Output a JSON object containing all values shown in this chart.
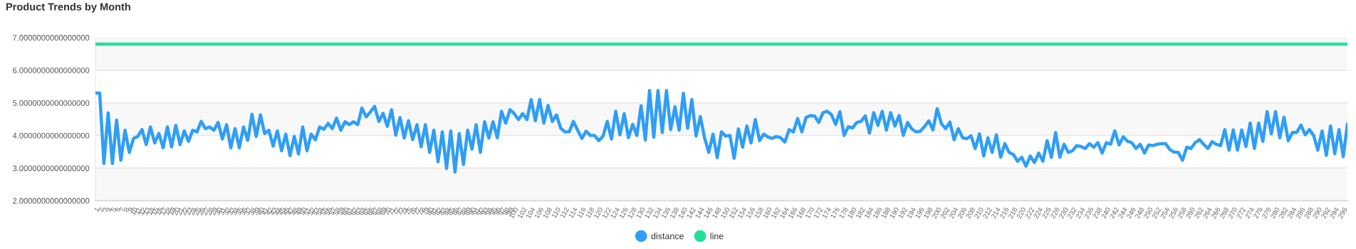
{
  "chart_data": {
    "type": "line",
    "title": "Product Trends by Month",
    "categories": [
      "1",
      "2",
      "3",
      "4",
      "5",
      "6",
      "7",
      "8",
      "9",
      "10",
      "11",
      "12",
      "13",
      "14",
      "15",
      "16",
      "17",
      "18",
      "19",
      "20",
      "21",
      "22",
      "23",
      "24",
      "25",
      "26",
      "27",
      "28",
      "29",
      "30",
      "31",
      "32",
      "33",
      "34",
      "35",
      "36",
      "37",
      "38",
      "39",
      "40",
      "41",
      "42",
      "43",
      "44",
      "45",
      "46",
      "47",
      "48",
      "49",
      "50",
      "51",
      "52",
      "53",
      "54",
      "55",
      "56",
      "57",
      "58",
      "59",
      "60",
      "61",
      "62",
      "63",
      "64",
      "65",
      "66",
      "67",
      "68",
      "69",
      "70",
      "71",
      "72",
      "73",
      "74",
      "75",
      "76",
      "77",
      "78",
      "79",
      "80",
      "81",
      "82",
      "83",
      "84",
      "85",
      "86",
      "87",
      "88",
      "89",
      "90",
      "91",
      "92",
      "93",
      "94",
      "95",
      "96",
      "97",
      "98",
      "99",
      "100",
      null,
      "102",
      null,
      "104",
      null,
      "106",
      null,
      "108",
      null,
      "110",
      null,
      "112",
      null,
      "114",
      null,
      "116",
      null,
      "118",
      null,
      "120",
      null,
      "122",
      null,
      "124",
      null,
      "126",
      null,
      "128",
      null,
      "130",
      null,
      "132",
      null,
      "134",
      null,
      "136",
      null,
      "138",
      null,
      "140",
      null,
      "142",
      null,
      "144",
      null,
      "146",
      null,
      "148",
      null,
      "150",
      null,
      "152",
      null,
      "154",
      null,
      "156",
      null,
      "158",
      null,
      "160",
      null,
      "162",
      null,
      "164",
      null,
      "166",
      null,
      "168",
      null,
      "170",
      null,
      "172",
      null,
      "174",
      null,
      "176",
      null,
      "178",
      null,
      "180",
      null,
      "182",
      null,
      "184",
      null,
      "186",
      null,
      "188",
      null,
      "190",
      null,
      "192",
      null,
      "194",
      null,
      "196",
      null,
      "198",
      null,
      "200",
      null,
      "202",
      null,
      "204",
      null,
      "206",
      null,
      "208",
      null,
      "210",
      null,
      "212",
      null,
      "214",
      null,
      "216",
      null,
      "218",
      null,
      "220",
      null,
      "222",
      null,
      "224",
      null,
      "226",
      null,
      "228",
      null,
      "230",
      null,
      "232",
      null,
      "234",
      null,
      "236",
      null,
      "238",
      null,
      "240",
      null,
      "242",
      null,
      "244",
      null,
      "246",
      null,
      "248",
      null,
      "250",
      null,
      "252",
      null,
      "254",
      null,
      "256",
      null,
      "258",
      null,
      "260",
      null,
      "262",
      null,
      "264",
      null,
      "266",
      null,
      "268",
      null,
      "270",
      null,
      "272",
      null,
      "274",
      null,
      "276",
      null,
      "278",
      null,
      "280",
      null,
      "282",
      null,
      "284",
      null,
      "286",
      null,
      "288",
      null,
      "290",
      null,
      "292",
      null,
      "294",
      null,
      "296",
      null
    ],
    "series": [
      {
        "name": "distance",
        "color": "#2e9ef6",
        "values": [
          5.3,
          5.3,
          3.14,
          4.69,
          3.14,
          4.47,
          3.24,
          4.16,
          3.48,
          3.91,
          3.97,
          4.18,
          3.72,
          4.26,
          3.77,
          4.06,
          3.62,
          4.26,
          3.65,
          4.31,
          3.72,
          4.14,
          3.82,
          4.16,
          4.11,
          4.43,
          4.21,
          4.26,
          4.16,
          4.4,
          3.89,
          4.33,
          3.62,
          4.21,
          3.62,
          4.26,
          3.85,
          4.65,
          3.97,
          4.63,
          4.06,
          4.16,
          3.67,
          4.14,
          3.53,
          4.04,
          3.38,
          3.97,
          3.43,
          4.26,
          3.53,
          4.04,
          3.87,
          4.26,
          4.19,
          4.37,
          4.21,
          4.53,
          4.16,
          4.42,
          4.33,
          4.42,
          4.33,
          4.84,
          4.57,
          4.72,
          4.89,
          4.43,
          4.68,
          4.28,
          4.79,
          4.01,
          4.55,
          3.92,
          4.45,
          3.87,
          4.33,
          3.65,
          4.33,
          3.48,
          4.16,
          3.19,
          4.11,
          2.99,
          4.14,
          2.88,
          4.06,
          3.11,
          4.16,
          3.58,
          4.33,
          3.48,
          4.42,
          3.92,
          4.42,
          3.93,
          4.74,
          4.38,
          4.79,
          4.67,
          4.49,
          4.67,
          4.49,
          5.1,
          4.45,
          5.1,
          4.38,
          4.92,
          4.43,
          4.63,
          4.22,
          4.11,
          4.11,
          4.43,
          4.16,
          3.91,
          4.13,
          4.0,
          4.0,
          3.84,
          3.98,
          4.43,
          3.89,
          4.74,
          4.02,
          4.67,
          3.93,
          4.34,
          4.0,
          4.91,
          3.86,
          5.38,
          3.95,
          5.38,
          4.09,
          5.38,
          4.18,
          4.88,
          4.16,
          5.29,
          4.22,
          5.1,
          3.98,
          4.58,
          3.93,
          3.48,
          4.04,
          3.32,
          4.11,
          3.98,
          4.0,
          3.3,
          4.2,
          3.64,
          4.29,
          3.77,
          4.49,
          3.84,
          4.04,
          3.95,
          3.91,
          3.97,
          3.93,
          3.8,
          4.18,
          4.11,
          4.52,
          4.11,
          4.55,
          4.61,
          4.6,
          4.4,
          4.7,
          4.74,
          4.64,
          4.34,
          4.73,
          4.0,
          4.27,
          4.23,
          4.4,
          4.43,
          4.6,
          4.07,
          4.7,
          4.31,
          4.74,
          4.16,
          4.7,
          4.29,
          4.61,
          4.0,
          4.4,
          4.2,
          4.11,
          4.13,
          4.27,
          4.45,
          4.17,
          4.82,
          4.36,
          4.21,
          4.41,
          3.87,
          4.21,
          3.93,
          3.9,
          3.99,
          3.6,
          4.05,
          3.37,
          3.93,
          3.48,
          4.02,
          3.33,
          3.75,
          3.48,
          3.42,
          3.21,
          3.33,
          3.06,
          3.37,
          3.17,
          3.46,
          3.21,
          3.84,
          3.33,
          4.09,
          3.33,
          3.73,
          3.48,
          3.53,
          3.69,
          3.66,
          3.6,
          3.75,
          3.64,
          3.78,
          3.46,
          3.78,
          3.73,
          4.14,
          3.71,
          3.96,
          3.82,
          3.78,
          3.6,
          3.73,
          3.46,
          3.71,
          3.69,
          3.73,
          3.75,
          3.75,
          3.57,
          3.49,
          3.48,
          3.24,
          3.64,
          3.6,
          3.78,
          3.87,
          3.73,
          3.6,
          3.81,
          3.73,
          3.69,
          4.18,
          3.55,
          4.17,
          3.55,
          4.17,
          3.66,
          4.38,
          3.6,
          4.38,
          3.82,
          4.73,
          4.05,
          4.73,
          3.93,
          4.56,
          3.84,
          4.09,
          4.09,
          4.32,
          4.02,
          4.18,
          4.0,
          3.55,
          4.14,
          3.39,
          4.29,
          3.44,
          4.18,
          3.35,
          4.35
        ]
      },
      {
        "name": "line",
        "color": "#24df9b",
        "values": [
          6.8,
          6.8,
          6.8,
          6.8,
          6.8,
          6.8,
          6.8,
          6.8,
          6.8,
          6.8,
          6.8,
          6.8,
          6.8,
          6.8,
          6.8,
          6.8,
          6.8,
          6.8,
          6.8,
          6.8,
          6.8,
          6.8,
          6.8,
          6.8,
          6.8,
          6.8,
          6.8,
          6.8,
          6.8,
          6.8,
          6.8,
          6.8,
          6.8,
          6.8,
          6.8,
          6.8,
          6.8,
          6.8,
          6.8,
          6.8,
          6.8,
          6.8,
          6.8,
          6.8,
          6.8,
          6.8,
          6.8,
          6.8,
          6.8,
          6.8,
          6.8,
          6.8,
          6.8,
          6.8,
          6.8,
          6.8,
          6.8,
          6.8,
          6.8,
          6.8,
          6.8,
          6.8,
          6.8,
          6.8,
          6.8,
          6.8,
          6.8,
          6.8,
          6.8,
          6.8,
          6.8,
          6.8,
          6.8,
          6.8,
          6.8,
          6.8,
          6.8,
          6.8,
          6.8,
          6.8,
          6.8,
          6.8,
          6.8,
          6.8,
          6.8,
          6.8,
          6.8,
          6.8,
          6.8,
          6.8,
          6.8,
          6.8,
          6.8,
          6.8,
          6.8,
          6.8,
          6.8,
          6.8,
          6.8,
          6.8,
          6.8,
          6.8,
          6.8,
          6.8,
          6.8,
          6.8,
          6.8,
          6.8,
          6.8,
          6.8,
          6.8,
          6.8,
          6.8,
          6.8,
          6.8,
          6.8,
          6.8,
          6.8,
          6.8,
          6.8,
          6.8,
          6.8,
          6.8,
          6.8,
          6.8,
          6.8,
          6.8,
          6.8,
          6.8,
          6.8,
          6.8,
          6.8,
          6.8,
          6.8,
          6.8,
          6.8,
          6.8,
          6.8,
          6.8,
          6.8,
          6.8,
          6.8,
          6.8,
          6.8,
          6.8,
          6.8,
          6.8,
          6.8,
          6.8,
          6.8,
          6.8,
          6.8,
          6.8,
          6.8,
          6.8,
          6.8,
          6.8,
          6.8,
          6.8,
          6.8,
          6.8,
          6.8,
          6.8,
          6.8,
          6.8,
          6.8,
          6.8,
          6.8,
          6.8,
          6.8,
          6.8,
          6.8,
          6.8,
          6.8,
          6.8,
          6.8,
          6.8,
          6.8,
          6.8,
          6.8,
          6.8,
          6.8,
          6.8,
          6.8,
          6.8,
          6.8,
          6.8,
          6.8,
          6.8,
          6.8,
          6.8,
          6.8,
          6.8,
          6.8,
          6.8,
          6.8,
          6.8,
          6.8,
          6.8,
          6.8,
          6.8,
          6.8,
          6.8,
          6.8,
          6.8,
          6.8,
          6.8,
          6.8,
          6.8,
          6.8,
          6.8,
          6.8,
          6.8,
          6.8,
          6.8,
          6.8,
          6.8,
          6.8,
          6.8,
          6.8,
          6.8,
          6.8,
          6.8,
          6.8,
          6.8,
          6.8,
          6.8,
          6.8,
          6.8,
          6.8,
          6.8,
          6.8,
          6.8,
          6.8,
          6.8,
          6.8,
          6.8,
          6.8,
          6.8,
          6.8,
          6.8,
          6.8,
          6.8,
          6.8,
          6.8,
          6.8,
          6.8,
          6.8,
          6.8,
          6.8,
          6.8,
          6.8,
          6.8,
          6.8,
          6.8,
          6.8,
          6.8,
          6.8,
          6.8,
          6.8,
          6.8,
          6.8,
          6.8,
          6.8,
          6.8,
          6.8,
          6.8,
          6.8,
          6.8,
          6.8,
          6.8,
          6.8,
          6.8,
          6.8,
          6.8,
          6.8,
          6.8,
          6.8,
          6.8,
          6.8,
          6.8,
          6.8,
          6.8,
          6.8,
          6.8,
          6.8,
          6.8,
          6.8,
          6.8,
          6.8,
          6.8,
          6.8,
          6.8,
          6.8,
          6.8,
          6.8,
          6.8
        ]
      }
    ],
    "ylim": [
      2,
      7
    ],
    "yticks": [
      {
        "value": 2,
        "label": "2.0000000000000000"
      },
      {
        "value": 3,
        "label": "3.0000000000000000"
      },
      {
        "value": 4,
        "label": "4.0000000000000000"
      },
      {
        "value": 5,
        "label": "5.0000000000000000"
      },
      {
        "value": 6,
        "label": "6.0000000000000000"
      },
      {
        "value": 7,
        "label": "7.0000000000000000"
      }
    ],
    "bands": [
      {
        "axis": "y",
        "from": 2,
        "to": 3,
        "color": "#f8f8f8"
      },
      {
        "axis": "y",
        "from": 4,
        "to": 5,
        "color": "#f8f8f8"
      },
      {
        "axis": "y",
        "from": 6,
        "to": 7,
        "color": "#f8f8f8"
      }
    ],
    "grid": "y",
    "legend": "bottom",
    "marker": "none",
    "line_style": "solid"
  }
}
